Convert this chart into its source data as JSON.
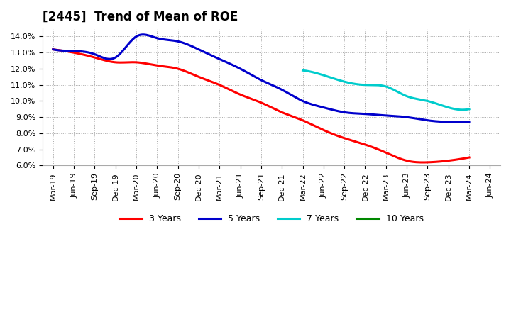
{
  "title": "[2445]  Trend of Mean of ROE",
  "background_color": "#ffffff",
  "plot_bg_color": "#ffffff",
  "grid_color": "#aaaaaa",
  "ylim": [
    0.06,
    0.145
  ],
  "yticks": [
    0.06,
    0.07,
    0.08,
    0.09,
    0.1,
    0.11,
    0.12,
    0.13,
    0.14
  ],
  "xtick_labels": [
    "Mar-19",
    "Jun-19",
    "Sep-19",
    "Dec-19",
    "Mar-20",
    "Jun-20",
    "Sep-20",
    "Dec-20",
    "Mar-21",
    "Jun-21",
    "Sep-21",
    "Dec-21",
    "Mar-22",
    "Jun-22",
    "Sep-22",
    "Dec-22",
    "Mar-23",
    "Jun-23",
    "Sep-23",
    "Dec-23",
    "Mar-24",
    "Jun-24"
  ],
  "series": {
    "3 Years": {
      "color": "#ff0000",
      "x_indices": [
        0,
        1,
        2,
        3,
        4,
        5,
        6,
        7,
        8,
        9,
        10,
        11,
        12,
        13,
        14,
        15,
        16,
        17,
        18,
        19,
        20
      ],
      "values": [
        0.132,
        0.13,
        0.127,
        0.124,
        0.124,
        0.122,
        0.12,
        0.115,
        0.11,
        0.104,
        0.099,
        0.093,
        0.088,
        0.082,
        0.077,
        0.073,
        0.068,
        0.063,
        0.062,
        0.063,
        0.065
      ]
    },
    "5 Years": {
      "color": "#0000cc",
      "x_indices": [
        0,
        1,
        2,
        3,
        4,
        5,
        6,
        7,
        8,
        9,
        10,
        11,
        12,
        13,
        14,
        15,
        16,
        17,
        18,
        19,
        20
      ],
      "values": [
        0.132,
        0.131,
        0.129,
        0.127,
        0.14,
        0.139,
        0.137,
        0.132,
        0.126,
        0.12,
        0.113,
        0.107,
        0.1,
        0.096,
        0.093,
        0.092,
        0.091,
        0.09,
        0.088,
        0.087,
        0.087
      ]
    },
    "7 Years": {
      "color": "#00cccc",
      "x_indices": [
        12,
        13,
        14,
        15,
        16,
        17,
        18,
        19,
        20
      ],
      "values": [
        0.119,
        0.116,
        0.112,
        0.11,
        0.109,
        0.103,
        0.1,
        0.096,
        0.095
      ]
    },
    "10 Years": {
      "color": "#008800",
      "x_indices": [],
      "values": []
    }
  },
  "legend_labels": [
    "3 Years",
    "5 Years",
    "7 Years",
    "10 Years"
  ],
  "legend_colors": [
    "#ff0000",
    "#0000cc",
    "#00cccc",
    "#008800"
  ],
  "title_fontsize": 12,
  "tick_fontsize": 8,
  "legend_fontsize": 9,
  "linewidth": 2.2
}
